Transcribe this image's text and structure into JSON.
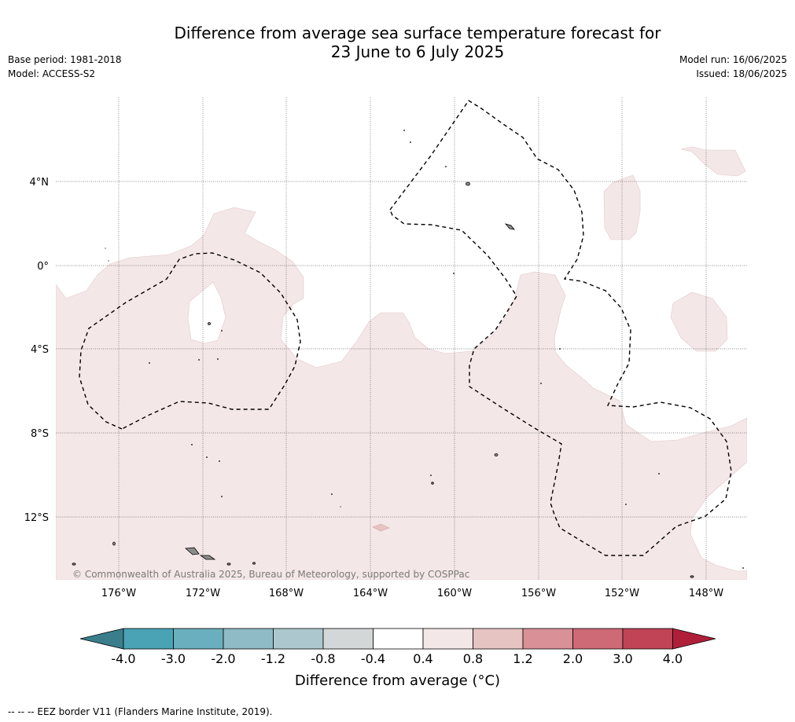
{
  "title": {
    "line1": "Difference from average sea surface temperature forecast for",
    "line2": "23 June to 6 July 2025"
  },
  "meta": {
    "base_period": "Base period: 1981-2018",
    "model": "Model: ACCESS-S2",
    "model_run": "Model run: 16/06/2025",
    "issued": "Issued: 18/06/2025"
  },
  "map": {
    "lat_labels": [
      "4°N",
      "0°",
      "4°S",
      "8°S",
      "12°S"
    ],
    "lon_labels": [
      "176°W",
      "172°W",
      "168°W",
      "164°W",
      "160°W",
      "156°W",
      "152°W",
      "148°W"
    ],
    "copyright": "© Commonwealth of Australia 2025, Bureau of Meteorology, supported by COSPPac",
    "anomaly_fill_color": "#f4e7e7",
    "land_color": "#8c8c8c"
  },
  "colorbar": {
    "ticks": [
      "-4.0",
      "-3.0",
      "-2.0",
      "-1.2",
      "-0.8",
      "-0.4",
      "0.4",
      "0.8",
      "1.2",
      "2.0",
      "3.0",
      "4.0"
    ],
    "colors": [
      "#3a7e8c",
      "#4aa3b5",
      "#6aafbd",
      "#8ebbc6",
      "#acc8ce",
      "#d4d7d7",
      "#ffffff",
      "#f4e7e7",
      "#e6c4c2",
      "#d99096",
      "#cd6a76",
      "#c04455",
      "#b01f3a"
    ],
    "label": "Difference from average (°C)"
  },
  "footnote": "--  --  -- EEZ border V11 (Flanders Marine Institute, 2019)."
}
